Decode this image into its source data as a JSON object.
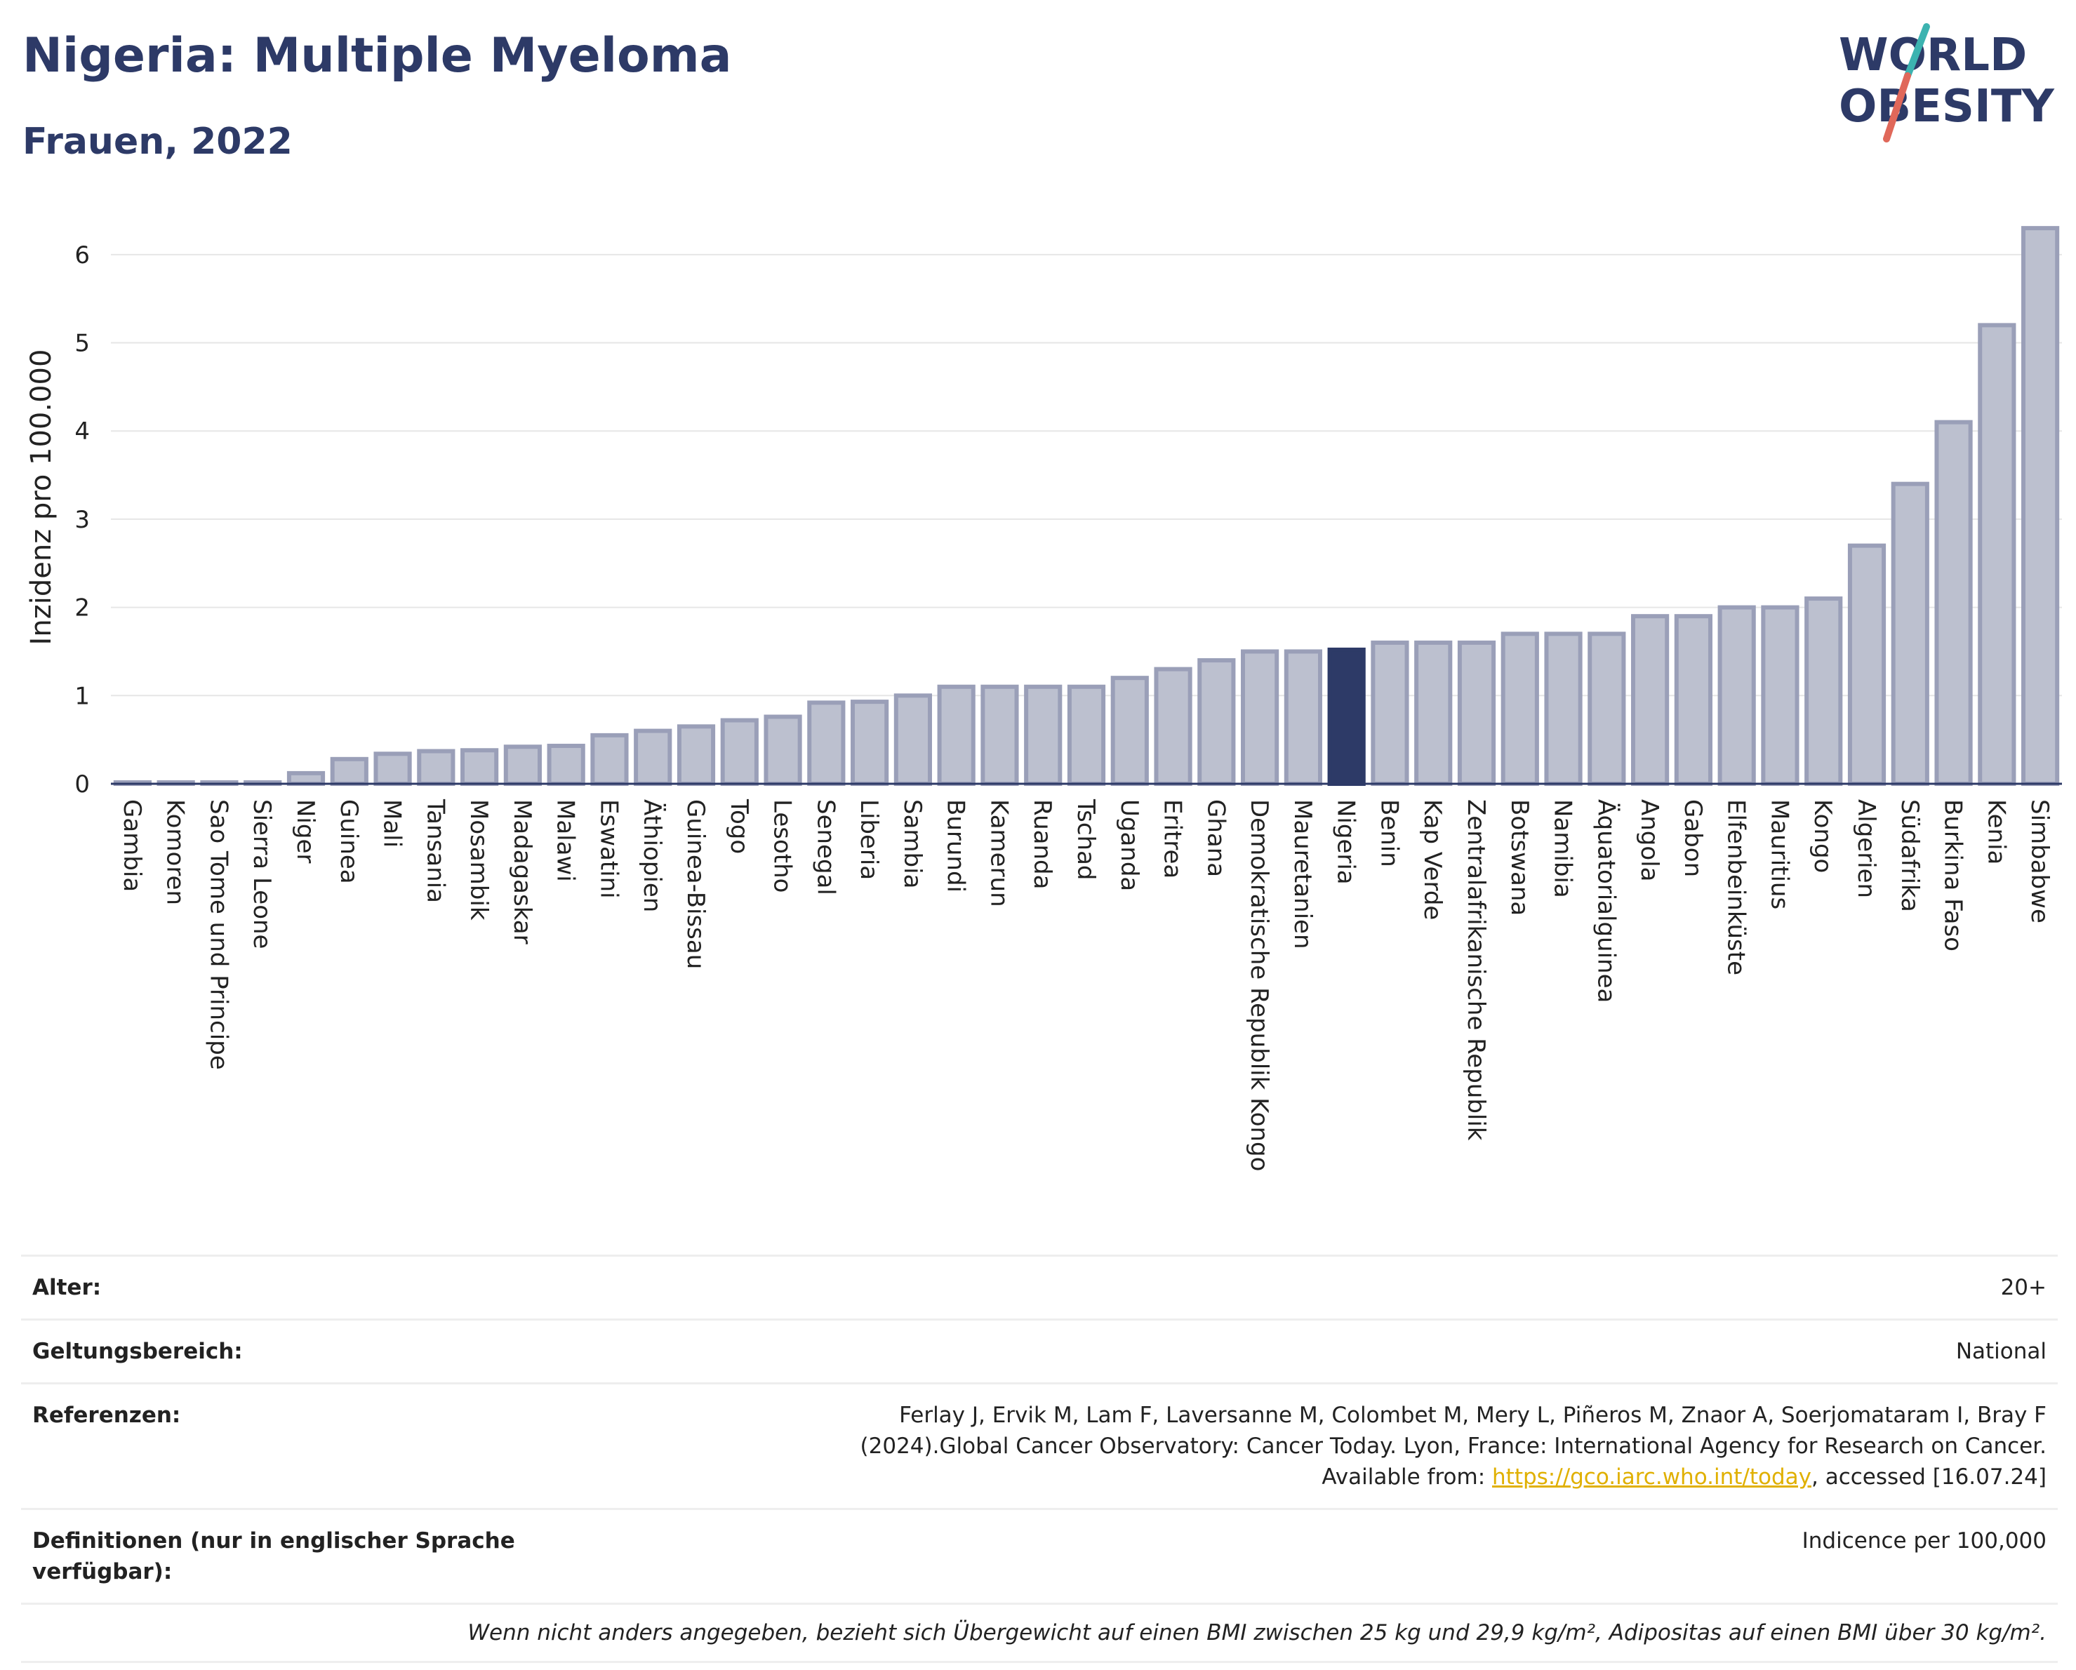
{
  "header": {
    "title": "Nigeria: Multiple Myeloma",
    "subtitle": "Frauen, 2022"
  },
  "logo": {
    "line1": "WORLD",
    "line2": "OBESITY",
    "accent_teal": "#3cb3b0",
    "accent_red": "#e0685a",
    "text_color": "#2d3a67"
  },
  "colors": {
    "bar": "#bcc0cf",
    "bar_border": "#9a9fb8",
    "highlight": "#2d3a67",
    "grid": "#e6e6e6"
  },
  "chart_data": {
    "type": "bar",
    "ylabel": "Inzidenz pro 100.000",
    "ylim": [
      0,
      6.5
    ],
    "yticks": [
      0,
      1,
      2,
      3,
      4,
      5,
      6
    ],
    "highlight": "Nigeria",
    "grid": true,
    "categories": [
      "Gambia",
      "Komoren",
      "Sao Tome und Principe",
      "Sierra Leone",
      "Niger",
      "Guinea",
      "Mali",
      "Tansania",
      "Mosambik",
      "Madagaskar",
      "Malawi",
      "Eswatini",
      "Äthiopien",
      "Guinea-Bissau",
      "Togo",
      "Lesotho",
      "Senegal",
      "Liberia",
      "Sambia",
      "Burundi",
      "Kamerun",
      "Ruanda",
      "Tschad",
      "Uganda",
      "Eritrea",
      "Ghana",
      "Demokratische Republik Kongo",
      "Mauretanien",
      "Nigeria",
      "Benin",
      "Kap Verde",
      "Zentralafrikanische Republik",
      "Botswana",
      "Namibia",
      "Äquatorialguinea",
      "Angola",
      "Gabon",
      "Elfenbeinküste",
      "Mauritius",
      "Kongo",
      "Algerien",
      "Südafrika",
      "Burkina Faso",
      "Kenia",
      "Simbabwe"
    ],
    "values": [
      0.01,
      0.01,
      0.01,
      0.01,
      0.12,
      0.28,
      0.34,
      0.37,
      0.38,
      0.42,
      0.43,
      0.55,
      0.6,
      0.65,
      0.72,
      0.76,
      0.92,
      0.93,
      1.0,
      1.1,
      1.1,
      1.1,
      1.1,
      1.2,
      1.3,
      1.4,
      1.5,
      1.5,
      1.52,
      1.6,
      1.6,
      1.6,
      1.7,
      1.7,
      1.7,
      1.9,
      1.9,
      2.0,
      2.0,
      2.1,
      2.7,
      3.4,
      4.1,
      5.2,
      6.3
    ]
  },
  "info": {
    "rows": [
      {
        "key": "Alter:",
        "value": "20+"
      },
      {
        "key": "Geltungsbereich:",
        "value": "National"
      },
      {
        "key": "Referenzen:",
        "value": "Ferlay J, Ervik M, Lam F, Laversanne M, Colombet M, Mery L, Piñeros M, Znaor A, Soerjomataram I, Bray F (2024).Global Cancer Observatory: Cancer Today. Lyon, France: International Agency for Research on Cancer. Available from: ",
        "link": "https://gco.iarc.who.int/today",
        "suffix": ", accessed [16.07.24]"
      },
      {
        "key": "Definitionen (nur in englischer Sprache verfügbar):",
        "value": "Indicence per 100,000"
      }
    ],
    "note": "Wenn nicht anders angegeben, bezieht sich Übergewicht auf einen BMI zwischen 25 kg und 29,9 kg/m², Adipositas auf einen BMI über 30 kg/m²."
  }
}
